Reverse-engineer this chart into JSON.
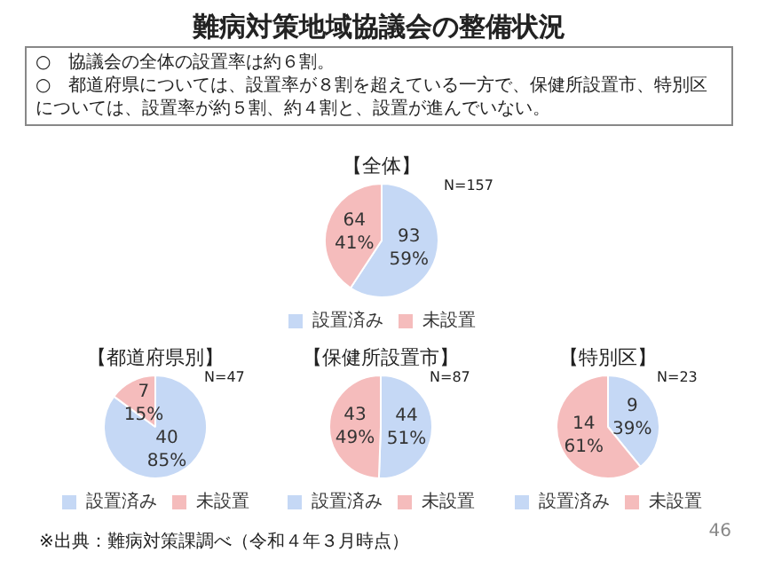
{
  "chart_data": [
    {
      "type": "other",
      "title": "難病対策地域協議会の整備状況",
      "annotations": [
        "○　協議会の全体の設置率は約６割。",
        "○　都道府県については、設置率が８割を超えている一方で、保健所設置市、特別区については、設置率が約５割、約４割と、設置が進んでいない。"
      ]
    },
    {
      "type": "pie",
      "title": "【全体】",
      "categories": [
        "設置済み",
        "未設置"
      ],
      "values": [
        93,
        64
      ],
      "colors": [
        "#c5d8f5",
        "#f5bcbc"
      ],
      "value_labels": [
        "93\n59%",
        "64\n41%"
      ],
      "annotations": [
        "N=157"
      ],
      "legend": "bottom"
    },
    {
      "type": "pie",
      "title": "【都道府県別】",
      "categories": [
        "設置済み",
        "未設置"
      ],
      "values": [
        40,
        7
      ],
      "colors": [
        "#c5d8f5",
        "#f5bcbc"
      ],
      "value_labels": [
        "40\n85%",
        "7\n15%"
      ],
      "annotations": [
        "N=47"
      ],
      "legend": "bottom"
    },
    {
      "type": "pie",
      "title": "【保健所設置市】",
      "categories": [
        "設置済み",
        "未設置"
      ],
      "values": [
        44,
        43
      ],
      "colors": [
        "#c5d8f5",
        "#f5bcbc"
      ],
      "value_labels": [
        "44\n51%",
        "43\n49%"
      ],
      "annotations": [
        "N=87"
      ],
      "legend": "bottom"
    },
    {
      "type": "pie",
      "title": "【特別区】",
      "categories": [
        "設置済み",
        "未設置"
      ],
      "values": [
        9,
        14
      ],
      "colors": [
        "#c5d8f5",
        "#f5bcbc"
      ],
      "value_labels": [
        "9\n39%",
        "14\n61%"
      ],
      "annotations": [
        "N=23"
      ],
      "legend": "bottom"
    },
    {
      "type": "other",
      "annotations": [
        "※出典：難病対策課調べ（令和４年３月時点）",
        "46"
      ]
    }
  ]
}
